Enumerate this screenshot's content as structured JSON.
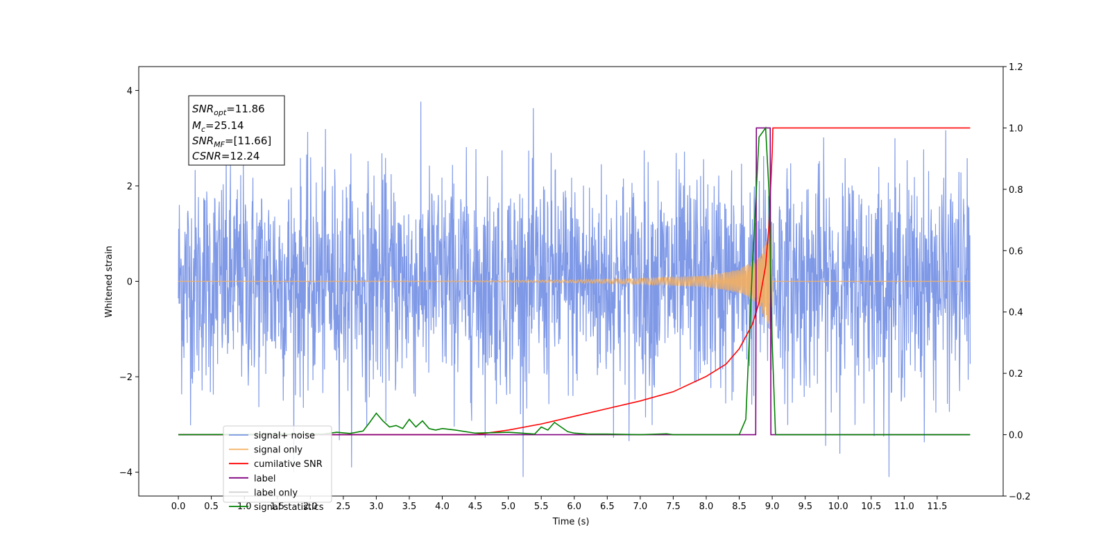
{
  "chart_data": {
    "type": "line",
    "xlabel": "Time (s)",
    "ylabel": "Whitened strain",
    "xlim": [
      -0.6,
      12.5
    ],
    "ylim": [
      -4.5,
      4.5
    ],
    "y2lim": [
      -0.2,
      1.2
    ],
    "x_ticks": [
      "0.0",
      "0.5",
      "1.0",
      "1.5",
      "2.0",
      "2.5",
      "3.0",
      "3.5",
      "4.0",
      "4.5",
      "5.0",
      "5.5",
      "6.0",
      "6.5",
      "7.0",
      "7.5",
      "8.0",
      "8.5",
      "9.0",
      "9.5",
      "10.0",
      "10.5",
      "11.0",
      "11.5"
    ],
    "y_ticks": [
      "4",
      "2",
      "0",
      "−2",
      "−4"
    ],
    "y2_ticks": [
      "1.2",
      "1.0",
      "0.8",
      "0.6",
      "0.4",
      "0.2",
      "0.0",
      "−0.2"
    ],
    "annotation": {
      "snr_opt": {
        "main": "SNR",
        "sub": "opt",
        "value": "=11.86"
      },
      "mc": {
        "main": "M",
        "sub": "c",
        "value": "=25.14"
      },
      "snr_mf": {
        "main": "SNR",
        "sub": "MF",
        "value": "=[11.66]"
      },
      "csnr": {
        "main": "CSNR",
        "value": "=12.24"
      }
    },
    "legend_position": "lower-left",
    "series": [
      {
        "name": "signal+ noise",
        "color": "#7894e6",
        "axis": "left",
        "description": "noise samples from 0 to 12 s, roughly ±2 with spikes to about ±4",
        "x_range": [
          0,
          12
        ]
      },
      {
        "name": "signal only",
        "color": "#f5b061",
        "axis": "left",
        "description": "chirp growing to about ±1.3 at 9.0 s, then zero",
        "envelope": {
          "x": [
            0,
            4.5,
            6,
            7,
            8,
            8.5,
            8.8,
            8.95,
            9.0
          ],
          "amp": [
            0.0,
            0.01,
            0.03,
            0.06,
            0.12,
            0.25,
            0.5,
            1.0,
            1.3
          ]
        }
      },
      {
        "name": "cumilative SNR",
        "color": "#ff0000",
        "axis": "right",
        "x": [
          0,
          4.5,
          5,
          5.5,
          6,
          6.5,
          7,
          7.5,
          8,
          8.3,
          8.5,
          8.7,
          8.8,
          8.9,
          8.95,
          9.0,
          9.01,
          12
        ],
        "y": [
          0.0,
          0.0,
          0.015,
          0.035,
          0.06,
          0.085,
          0.11,
          0.14,
          0.19,
          0.23,
          0.28,
          0.36,
          0.43,
          0.55,
          0.68,
          0.92,
          1.0,
          1.0
        ]
      },
      {
        "name": "label",
        "color": "#800080",
        "axis": "right",
        "x": [
          0,
          8.75,
          8.76,
          8.97,
          8.98,
          12
        ],
        "y": [
          0,
          0,
          1,
          1,
          0,
          0
        ]
      },
      {
        "name": "label only",
        "color": "#d0d0d0",
        "axis": "right",
        "description": "legend entry only"
      },
      {
        "name": "signal statistics",
        "color": "#008000",
        "axis": "right",
        "x": [
          0,
          2.2,
          2.4,
          2.6,
          2.8,
          2.9,
          3.0,
          3.1,
          3.2,
          3.3,
          3.4,
          3.5,
          3.6,
          3.7,
          3.8,
          3.9,
          4.0,
          4.2,
          4.5,
          5.0,
          5.2,
          5.4,
          5.5,
          5.6,
          5.7,
          5.8,
          5.9,
          6.0,
          6.2,
          6.5,
          7.0,
          7.4,
          7.5,
          8.5,
          8.6,
          8.7,
          8.8,
          8.9,
          8.95,
          9.0,
          9.05,
          12
        ],
        "y": [
          0,
          0.002,
          0.008,
          0.004,
          0.012,
          0.04,
          0.07,
          0.045,
          0.025,
          0.03,
          0.02,
          0.05,
          0.025,
          0.045,
          0.02,
          0.015,
          0.02,
          0.015,
          0.005,
          0.008,
          0.005,
          0.002,
          0.025,
          0.015,
          0.04,
          0.025,
          0.01,
          0.005,
          0.002,
          0.002,
          0.0,
          0.003,
          0.0,
          0.0,
          0.05,
          0.55,
          0.97,
          1.0,
          0.8,
          0.3,
          0.0,
          0.0
        ]
      }
    ]
  }
}
